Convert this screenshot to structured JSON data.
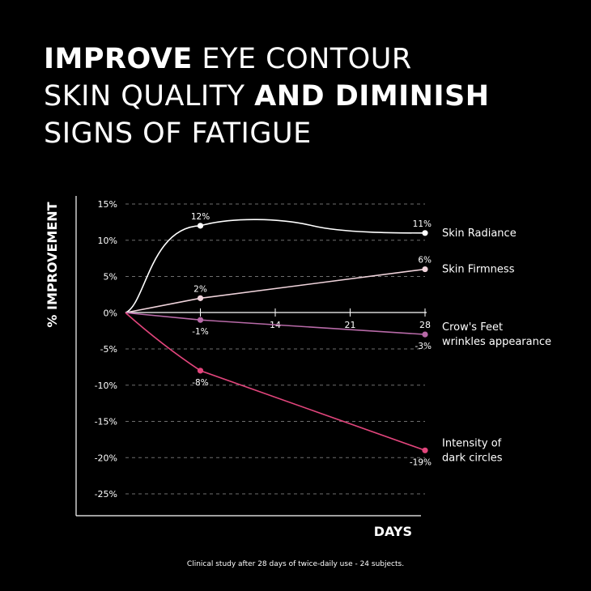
{
  "headline": {
    "line1_bold": "IMPROVE",
    "line1_rest": " EYE CONTOUR",
    "line2_rest": "SKIN QUALITY ",
    "line2_bold": "AND DIMINISH",
    "line3": "SIGNS OF FATIGUE"
  },
  "footnote": "Clinical study after 28 days of twice-daily use - 24 subjects.",
  "colors": {
    "background": "#000000",
    "axis": "#ffffff",
    "grid": "#6e6e6e",
    "skin_radiance": "#ffffff",
    "skin_firmness": "#f0d4dc",
    "crows_feet": "#b86aa8",
    "dark_circles": "#e2457c"
  },
  "chart_data": {
    "type": "line",
    "xlabel": "DAYS",
    "ylabel": "% IMPROVEMENT",
    "xlim": [
      0,
      28
    ],
    "ylim": [
      -25,
      15
    ],
    "x_ticks": [
      7,
      14,
      21,
      28
    ],
    "x_tick_labels": [
      "",
      "14",
      "21",
      "28"
    ],
    "y_ticks": [
      15,
      10,
      5,
      0,
      -5,
      -10,
      -15,
      -20,
      -25
    ],
    "y_tick_labels": [
      "15%",
      "10%",
      "5%",
      "0%",
      "-5%",
      "-10%",
      "-15%",
      "-20%",
      "-25%"
    ],
    "grid": true,
    "series": [
      {
        "name": "Skin Radiance",
        "color_key": "skin_radiance",
        "points": [
          [
            0,
            0
          ],
          [
            7,
            12
          ],
          [
            28,
            11
          ]
        ],
        "labels": [
          "",
          "12%",
          "11%"
        ],
        "curve": "smooth"
      },
      {
        "name": "Skin Firmness",
        "color_key": "skin_firmness",
        "points": [
          [
            0,
            0
          ],
          [
            7,
            2
          ],
          [
            28,
            6
          ]
        ],
        "labels": [
          "",
          "2%",
          "6%"
        ],
        "curve": "linear"
      },
      {
        "name": "Crow's Feet wrinkles appearance",
        "legend_lines": [
          "Crow's Feet",
          "wrinkles appearance"
        ],
        "color_key": "crows_feet",
        "points": [
          [
            0,
            0
          ],
          [
            7,
            -1
          ],
          [
            28,
            -3
          ]
        ],
        "labels": [
          "",
          "-1%",
          "-3%"
        ],
        "curve": "linear"
      },
      {
        "name": "Intensity of dark circles",
        "legend_lines": [
          "Intensity of",
          "dark circles"
        ],
        "color_key": "dark_circles",
        "points": [
          [
            0,
            0
          ],
          [
            7,
            -8
          ],
          [
            28,
            -19
          ]
        ],
        "labels": [
          "",
          "-8%",
          "-19%"
        ],
        "curve": "concave"
      }
    ]
  }
}
